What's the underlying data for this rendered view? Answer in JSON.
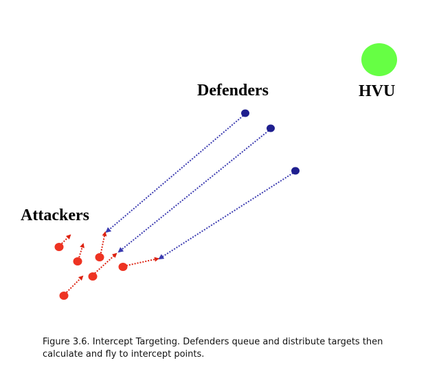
{
  "labels": {
    "defenders": "Defenders",
    "hvu": "HVU",
    "attackers": "Attackers"
  },
  "caption": "Figure 3.6. Intercept Targeting. Defenders queue and distribute targets then calculate and fly to intercept points.",
  "colors": {
    "hvu": "#66ff44",
    "defender": "#1f1f8f",
    "defender_path": "#3a3ab0",
    "attacker": "#ee3322",
    "attacker_path": "#dd2211"
  },
  "icons": {
    "hvu": "green-circle",
    "defender": "navy-dot",
    "attacker": "red-dot",
    "path": "dotted-arrow"
  }
}
